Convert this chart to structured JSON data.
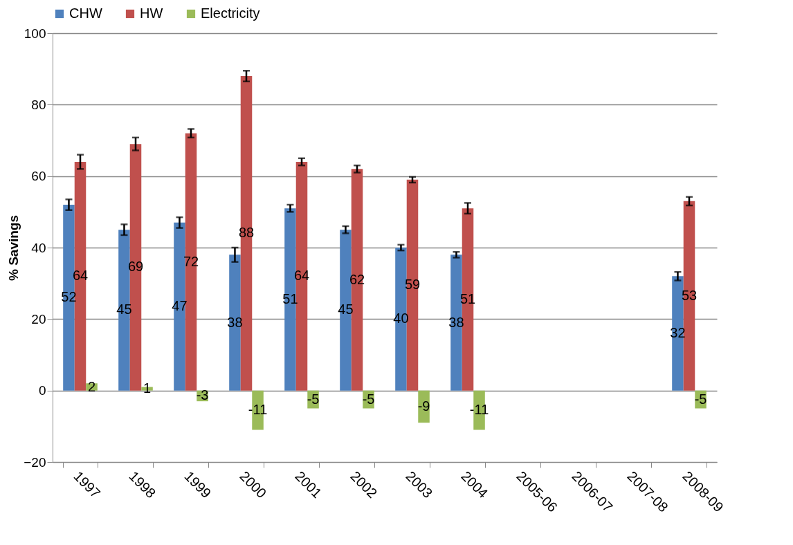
{
  "chart_data": {
    "type": "bar",
    "ylabel": "% Savings",
    "categories": [
      "1997",
      "1998",
      "1999",
      "2000",
      "2001",
      "2002",
      "2003",
      "2004",
      "2005-06",
      "2006-07",
      "2007-08",
      "2008-09"
    ],
    "series": [
      {
        "name": "CHW",
        "color": "#4f81bd",
        "values": [
          52,
          45,
          47,
          38,
          51,
          45,
          40,
          38,
          null,
          null,
          null,
          32
        ],
        "errors": [
          1.5,
          1.5,
          1.5,
          2,
          1,
          1,
          0.8,
          0.8,
          null,
          null,
          null,
          1.2
        ]
      },
      {
        "name": "HW",
        "color": "#c0504d",
        "values": [
          64,
          69,
          72,
          88,
          64,
          62,
          59,
          51,
          null,
          null,
          null,
          53
        ],
        "errors": [
          2,
          1.8,
          1.2,
          1.5,
          1,
          1,
          0.8,
          1.5,
          null,
          null,
          null,
          1.2
        ]
      },
      {
        "name": "Electricity",
        "color": "#9bbb59",
        "values": [
          2,
          1,
          -3,
          -11,
          -5,
          -5,
          -9,
          -11,
          null,
          null,
          null,
          -5
        ]
      }
    ],
    "ylim": [
      -20,
      100
    ],
    "yticks": [
      -20,
      0,
      20,
      40,
      60,
      80,
      100
    ],
    "grid": "y",
    "legend": "top",
    "data_labels": true
  }
}
